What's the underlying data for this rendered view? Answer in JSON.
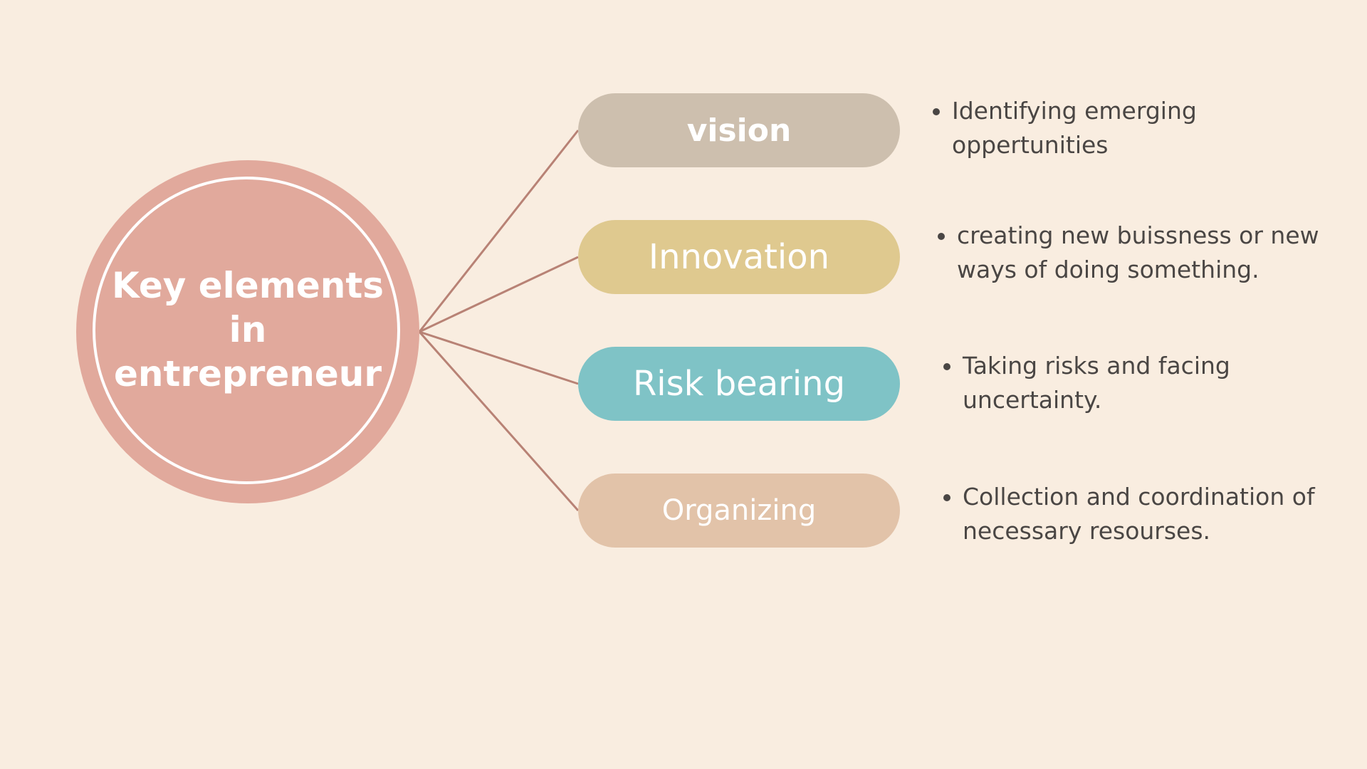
{
  "hub": {
    "label": "Key elements\nin\nentrepreneur",
    "color": "#e1a99c",
    "ring_color": "#ffffff"
  },
  "line_color": "#b88275",
  "background": "#f9ede0",
  "elements": [
    {
      "label": "vision",
      "color": "#cdbfae",
      "description": "Identifying emerging\noppertunities"
    },
    {
      "label": "Innovation",
      "color": "#dfc98f",
      "description": "creating new buissness or new\nways of doing something."
    },
    {
      "label": "Risk bearing",
      "color": "#7fc3c6",
      "description": "Taking risks and facing\nuncertainty."
    },
    {
      "label": "Organizing",
      "color": "#e2c3a9",
      "description": "Collection and coordination of\nnecessary resourses."
    }
  ]
}
